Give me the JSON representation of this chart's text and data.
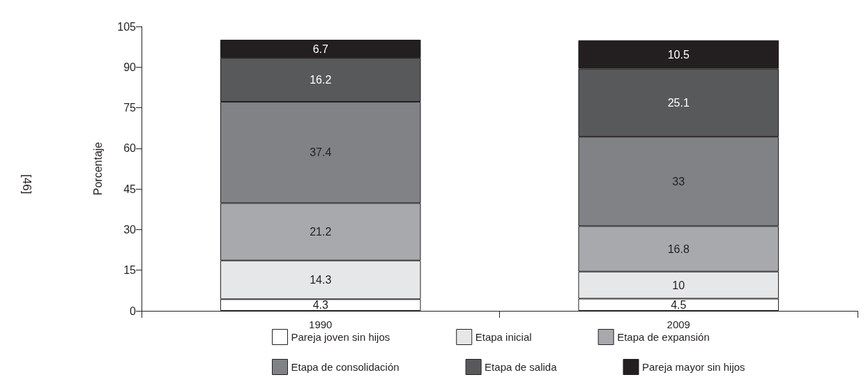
{
  "chart_data": {
    "type": "bar",
    "stacked": true,
    "ylabel": "Porcentaje",
    "categories": [
      "1990",
      "2009"
    ],
    "series": [
      {
        "name": "Pareja joven sin hijos",
        "color": "#ffffff",
        "values": [
          4.3,
          4.5
        ]
      },
      {
        "name": "Etapa inicial",
        "color": "#e6e7e8",
        "values": [
          14.3,
          10
        ]
      },
      {
        "name": "Etapa de expansión",
        "color": "#a7a9ac",
        "values": [
          21.2,
          16.8
        ]
      },
      {
        "name": "Etapa de consolidación",
        "color": "#808285",
        "values": [
          37.4,
          33
        ]
      },
      {
        "name": "Etapa de salida",
        "color": "#58595b",
        "values": [
          16.2,
          25.1
        ]
      },
      {
        "name": "Pareja mayor sin hijos",
        "color": "#231f20",
        "values": [
          6.7,
          10.5
        ]
      }
    ],
    "ylim": [
      0,
      105
    ],
    "yticks": [
      0,
      15,
      30,
      45,
      60,
      75,
      90,
      105
    ],
    "grid": false,
    "legend": "bottom",
    "data_labels": true,
    "annotations": [
      "[46]"
    ]
  }
}
